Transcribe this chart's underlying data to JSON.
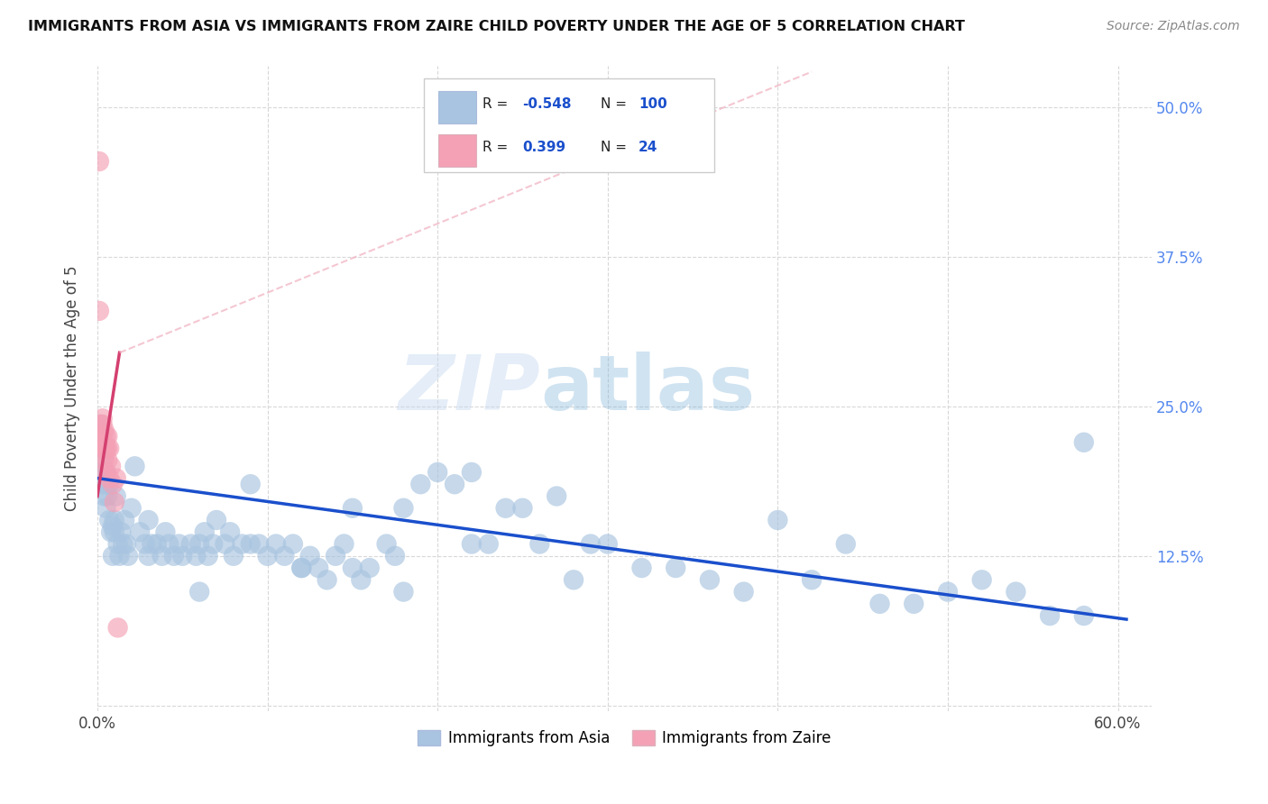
{
  "title": "IMMIGRANTS FROM ASIA VS IMMIGRANTS FROM ZAIRE CHILD POVERTY UNDER THE AGE OF 5 CORRELATION CHART",
  "source": "Source: ZipAtlas.com",
  "ylabel": "Child Poverty Under the Age of 5",
  "xlim": [
    0.0,
    0.62
  ],
  "ylim": [
    -0.005,
    0.535
  ],
  "xticks": [
    0.0,
    0.1,
    0.2,
    0.3,
    0.4,
    0.5,
    0.6
  ],
  "xticklabels": [
    "0.0%",
    "",
    "",
    "",
    "",
    "",
    "60.0%"
  ],
  "ytick_positions": [
    0.0,
    0.125,
    0.25,
    0.375,
    0.5
  ],
  "yticklabels_right": [
    "",
    "12.5%",
    "25.0%",
    "37.5%",
    "50.0%"
  ],
  "legend_label_asia": "Immigrants from Asia",
  "legend_label_zaire": "Immigrants from Zaire",
  "watermark_zip": "ZIP",
  "watermark_atlas": "atlas",
  "background_color": "#ffffff",
  "asia_color": "#a8c4e0",
  "zaire_color": "#f4a0b5",
  "asia_line_color": "#1a4fcc",
  "zaire_line_color": "#d44070",
  "zaire_dash_color": "#f0b0c0",
  "grid_color": "#d8d8d8",
  "title_color": "#111111",
  "right_tick_color": "#5588ee",
  "asia_scatter_x": [
    0.001,
    0.002,
    0.003,
    0.003,
    0.004,
    0.005,
    0.005,
    0.006,
    0.006,
    0.007,
    0.007,
    0.008,
    0.009,
    0.009,
    0.01,
    0.01,
    0.011,
    0.012,
    0.013,
    0.014,
    0.015,
    0.016,
    0.017,
    0.018,
    0.02,
    0.022,
    0.025,
    0.028,
    0.03,
    0.032,
    0.035,
    0.038,
    0.04,
    0.042,
    0.045,
    0.048,
    0.05,
    0.055,
    0.058,
    0.06,
    0.063,
    0.065,
    0.068,
    0.07,
    0.075,
    0.078,
    0.08,
    0.085,
    0.09,
    0.095,
    0.1,
    0.105,
    0.11,
    0.115,
    0.12,
    0.125,
    0.13,
    0.135,
    0.14,
    0.145,
    0.15,
    0.155,
    0.16,
    0.17,
    0.175,
    0.18,
    0.19,
    0.2,
    0.21,
    0.22,
    0.23,
    0.24,
    0.25,
    0.26,
    0.27,
    0.28,
    0.29,
    0.3,
    0.32,
    0.34,
    0.36,
    0.38,
    0.4,
    0.42,
    0.44,
    0.46,
    0.48,
    0.5,
    0.52,
    0.54,
    0.56,
    0.58,
    0.03,
    0.06,
    0.09,
    0.12,
    0.15,
    0.18,
    0.22,
    0.58
  ],
  "asia_scatter_y": [
    0.235,
    0.195,
    0.185,
    0.205,
    0.175,
    0.195,
    0.165,
    0.185,
    0.175,
    0.185,
    0.155,
    0.145,
    0.15,
    0.125,
    0.155,
    0.145,
    0.175,
    0.135,
    0.125,
    0.145,
    0.135,
    0.155,
    0.135,
    0.125,
    0.165,
    0.2,
    0.145,
    0.135,
    0.155,
    0.135,
    0.135,
    0.125,
    0.145,
    0.135,
    0.125,
    0.135,
    0.125,
    0.135,
    0.125,
    0.135,
    0.145,
    0.125,
    0.135,
    0.155,
    0.135,
    0.145,
    0.125,
    0.135,
    0.185,
    0.135,
    0.125,
    0.135,
    0.125,
    0.135,
    0.115,
    0.125,
    0.115,
    0.105,
    0.125,
    0.135,
    0.115,
    0.105,
    0.115,
    0.135,
    0.125,
    0.165,
    0.185,
    0.195,
    0.185,
    0.195,
    0.135,
    0.165,
    0.165,
    0.135,
    0.175,
    0.105,
    0.135,
    0.135,
    0.115,
    0.115,
    0.105,
    0.095,
    0.155,
    0.105,
    0.135,
    0.085,
    0.085,
    0.095,
    0.105,
    0.095,
    0.075,
    0.075,
    0.125,
    0.095,
    0.135,
    0.115,
    0.165,
    0.095,
    0.135,
    0.22
  ],
  "zaire_scatter_x": [
    0.001,
    0.001,
    0.002,
    0.002,
    0.003,
    0.003,
    0.004,
    0.004,
    0.005,
    0.005,
    0.006,
    0.006,
    0.007,
    0.007,
    0.008,
    0.009,
    0.01,
    0.011,
    0.012,
    0.003,
    0.003,
    0.004,
    0.005,
    0.006
  ],
  "zaire_scatter_y": [
    0.455,
    0.33,
    0.235,
    0.225,
    0.24,
    0.225,
    0.23,
    0.205,
    0.225,
    0.195,
    0.225,
    0.205,
    0.215,
    0.19,
    0.2,
    0.185,
    0.17,
    0.19,
    0.065,
    0.235,
    0.215,
    0.215,
    0.215,
    0.215
  ],
  "asia_trend_x0": 0.0,
  "asia_trend_x1": 0.605,
  "asia_trend_y0": 0.19,
  "asia_trend_y1": 0.072,
  "zaire_trend_solid_x0": 0.0,
  "zaire_trend_solid_x1": 0.013,
  "zaire_trend_solid_y0": 0.175,
  "zaire_trend_solid_y1": 0.295,
  "zaire_trend_dash_x0": 0.013,
  "zaire_trend_dash_x1": 0.42,
  "zaire_trend_dash_y0": 0.295,
  "zaire_trend_dash_y1": 0.53
}
